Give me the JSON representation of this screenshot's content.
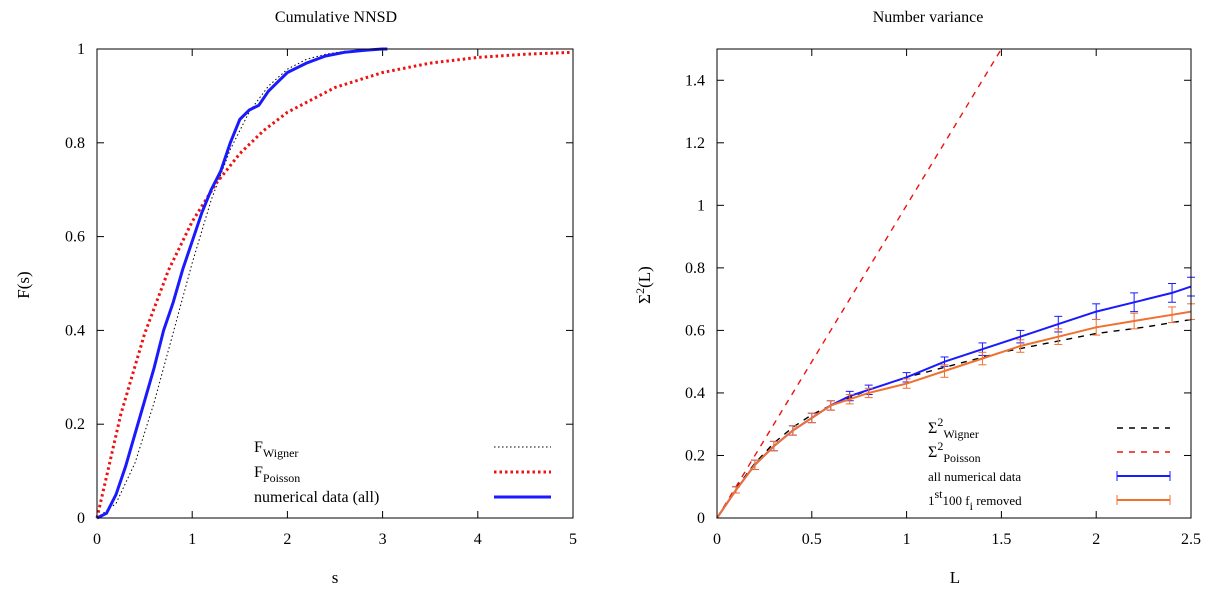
{
  "chart_data": [
    {
      "type": "line",
      "title": "Cumulative NNSD",
      "xlabel": "s",
      "ylabel": "F(s)",
      "xlim": [
        0,
        5
      ],
      "ylim": [
        0,
        1
      ],
      "xticks": [
        "0",
        "1",
        "2",
        "3",
        "4",
        "5"
      ],
      "yticks": [
        "0",
        "0.2",
        "0.4",
        "0.6",
        "0.8",
        "1"
      ],
      "legend_position": "bottom-right",
      "legend": [
        {
          "base": "F",
          "sub": "Wigner",
          "tail": ""
        },
        {
          "base": "F",
          "sub": "Poisson",
          "tail": ""
        },
        {
          "base": " numerical data (all)",
          "sub": "",
          "tail": ""
        }
      ],
      "series": [
        {
          "name": "F_Wigner",
          "style": "dotted",
          "color": "#000000",
          "x": [
            0,
            0.2,
            0.4,
            0.6,
            0.8,
            1.0,
            1.2,
            1.4,
            1.6,
            1.8,
            2.0,
            2.2,
            2.4,
            2.6,
            2.8,
            3.0
          ],
          "y": [
            0,
            0.031,
            0.118,
            0.246,
            0.395,
            0.544,
            0.678,
            0.786,
            0.866,
            0.921,
            0.957,
            0.978,
            0.989,
            0.995,
            0.998,
            0.999
          ]
        },
        {
          "name": "F_Poisson",
          "style": "dotted-thick",
          "color": "#ee1111",
          "x": [
            0,
            0.25,
            0.5,
            0.75,
            1.0,
            1.25,
            1.5,
            1.75,
            2.0,
            2.5,
            3.0,
            3.5,
            4.0,
            4.5,
            5.0
          ],
          "y": [
            0,
            0.221,
            0.393,
            0.528,
            0.632,
            0.713,
            0.777,
            0.826,
            0.865,
            0.918,
            0.95,
            0.97,
            0.982,
            0.989,
            0.993
          ]
        },
        {
          "name": "numerical data (all)",
          "style": "solid",
          "color": "#1a1aff",
          "x": [
            0,
            0.1,
            0.2,
            0.3,
            0.4,
            0.5,
            0.6,
            0.7,
            0.8,
            0.9,
            1.0,
            1.1,
            1.2,
            1.3,
            1.4,
            1.5,
            1.6,
            1.7,
            1.8,
            1.9,
            2.0,
            2.2,
            2.4,
            2.6,
            2.8,
            3.0,
            3.05
          ],
          "y": [
            0,
            0.01,
            0.05,
            0.11,
            0.18,
            0.25,
            0.32,
            0.4,
            0.46,
            0.53,
            0.59,
            0.65,
            0.7,
            0.74,
            0.8,
            0.85,
            0.87,
            0.88,
            0.91,
            0.93,
            0.95,
            0.97,
            0.985,
            0.993,
            0.997,
            1.0,
            1.0
          ]
        }
      ]
    },
    {
      "type": "line",
      "title": "Number variance",
      "xlabel": "L",
      "ylabel": {
        "base": "Σ",
        "sup": "2",
        "tail": "(L)"
      },
      "xlim": [
        0,
        2.5
      ],
      "ylim": [
        0,
        1.5
      ],
      "xticks": [
        "0",
        "0.5",
        "1",
        "1.5",
        "2",
        "2.5"
      ],
      "yticks": [
        "0",
        "0.2",
        "0.4",
        "0.6",
        "0.8",
        "1",
        "1.2",
        "1.4"
      ],
      "legend_position": "bottom-right",
      "legend": [
        {
          "base": "Σ",
          "sup": "2",
          "sub": "Wigner",
          "tail": ""
        },
        {
          "base": "Σ",
          "sup": "2",
          "sub": "Poisson",
          "tail": ""
        },
        {
          "base": "all numerical data",
          "sup": "",
          "sub": "",
          "tail": ""
        },
        {
          "base": "1",
          "sup": "st",
          "mid": "100 f",
          "sub": "i",
          "tail": " removed"
        }
      ],
      "series": [
        {
          "name": "Σ²_Wigner",
          "style": "dashed",
          "color": "#000000",
          "x": [
            0,
            0.1,
            0.2,
            0.3,
            0.4,
            0.5,
            0.6,
            0.8,
            1.0,
            1.25,
            1.5,
            1.75,
            2.0,
            2.25,
            2.5
          ],
          "y": [
            0,
            0.095,
            0.175,
            0.24,
            0.29,
            0.33,
            0.36,
            0.41,
            0.45,
            0.49,
            0.53,
            0.56,
            0.59,
            0.61,
            0.635
          ]
        },
        {
          "name": "Σ²_Poisson",
          "style": "dashed",
          "color": "#ee1111",
          "x": [
            0,
            1.5
          ],
          "y": [
            0,
            1.5
          ]
        },
        {
          "name": "all numerical data",
          "style": "errorbar",
          "color": "#1a1aff",
          "x": [
            0,
            0.1,
            0.2,
            0.3,
            0.4,
            0.5,
            0.6,
            0.7,
            0.8,
            1.0,
            1.2,
            1.4,
            1.6,
            1.8,
            2.0,
            2.2,
            2.4,
            2.5
          ],
          "y": [
            0,
            0.09,
            0.17,
            0.23,
            0.28,
            0.32,
            0.36,
            0.39,
            0.41,
            0.45,
            0.5,
            0.54,
            0.58,
            0.62,
            0.66,
            0.69,
            0.72,
            0.74
          ],
          "err": [
            0,
            0.01,
            0.015,
            0.015,
            0.015,
            0.015,
            0.015,
            0.015,
            0.015,
            0.015,
            0.015,
            0.02,
            0.02,
            0.025,
            0.025,
            0.03,
            0.03,
            0.03
          ]
        },
        {
          "name": "1st 100 f_i removed",
          "style": "errorbar",
          "color": "#f07030",
          "x": [
            0,
            0.1,
            0.2,
            0.3,
            0.4,
            0.5,
            0.6,
            0.7,
            0.8,
            1.0,
            1.2,
            1.4,
            1.6,
            1.8,
            2.0,
            2.2,
            2.4,
            2.5
          ],
          "y": [
            0,
            0.09,
            0.17,
            0.23,
            0.28,
            0.32,
            0.36,
            0.38,
            0.4,
            0.43,
            0.47,
            0.51,
            0.55,
            0.58,
            0.61,
            0.63,
            0.65,
            0.66
          ],
          "err": [
            0,
            0.01,
            0.015,
            0.015,
            0.015,
            0.015,
            0.015,
            0.015,
            0.015,
            0.015,
            0.02,
            0.02,
            0.02,
            0.025,
            0.025,
            0.025,
            0.025,
            0.025
          ]
        }
      ]
    }
  ]
}
